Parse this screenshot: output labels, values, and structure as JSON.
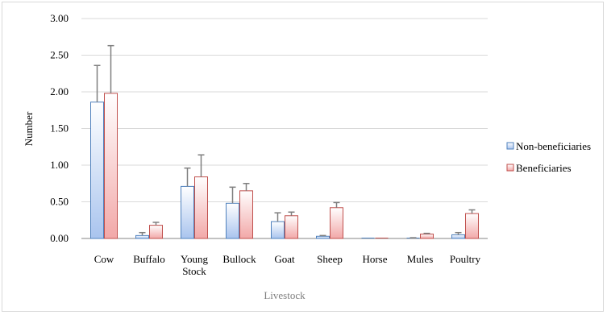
{
  "chart_data": {
    "type": "bar",
    "categories": [
      [
        "Cow"
      ],
      [
        "Buffalo"
      ],
      [
        "Young",
        "Stock"
      ],
      [
        "Bullock"
      ],
      [
        "Goat"
      ],
      [
        "Sheep"
      ],
      [
        "Horse"
      ],
      [
        "Mules"
      ],
      [
        "Poultry"
      ]
    ],
    "series": [
      {
        "name": "Non-beneficiaries",
        "values": [
          1.86,
          0.04,
          0.71,
          0.48,
          0.23,
          0.03,
          0.0,
          0.0,
          0.05
        ],
        "error": [
          0.5,
          0.04,
          0.25,
          0.22,
          0.12,
          0.01,
          0.0,
          0.01,
          0.03
        ],
        "color_top": "#ffffff",
        "color_bottom": "#a9c4ee",
        "stroke": "#4f81bd"
      },
      {
        "name": "Beneficiaries",
        "values": [
          1.98,
          0.18,
          0.84,
          0.65,
          0.31,
          0.42,
          0.0,
          0.06,
          0.34
        ],
        "error": [
          0.65,
          0.04,
          0.3,
          0.1,
          0.05,
          0.07,
          0.0,
          0.01,
          0.05
        ],
        "color_top": "#ffffff",
        "color_bottom": "#f2a8a8",
        "stroke": "#c0504d"
      }
    ],
    "ylim": [
      0,
      3
    ],
    "yticks": [
      "0.00",
      "0.50",
      "1.00",
      "1.50",
      "2.00",
      "2.50",
      "3.00"
    ],
    "ylabel": "Number",
    "xlabel": "Livestock",
    "grid": true,
    "legend": "right",
    "colors": {
      "grid": "#d9d9d9",
      "axis": "#868686",
      "error_bar": "#7f7f7f"
    }
  }
}
